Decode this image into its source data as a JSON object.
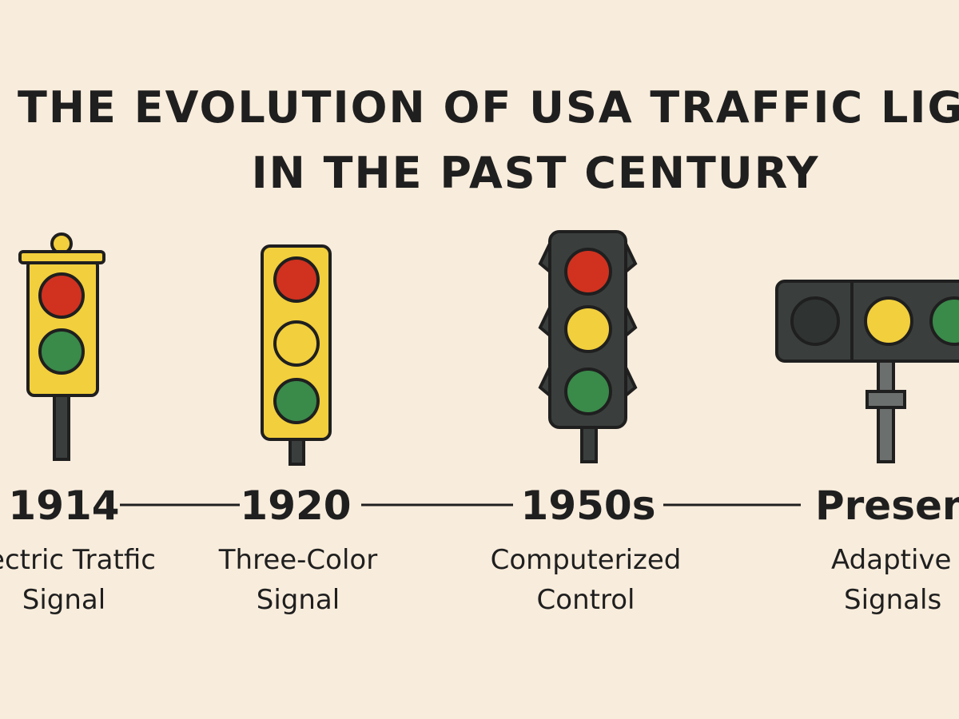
{
  "title": {
    "line1": "THE EVOLUTION OF USA TRAFFIC LIG",
    "line2": "IN THE PAST CENTURY"
  },
  "milestones": [
    {
      "year": "1914",
      "label": [
        "ectric Tratfic",
        "Signal"
      ]
    },
    {
      "year": "1920",
      "label": [
        "Three-Color",
        "Signal"
      ]
    },
    {
      "year": "1950s",
      "label": [
        "Computerized",
        "Control"
      ]
    },
    {
      "year": "Present",
      "label": [
        "Adaptive",
        "Signals"
      ]
    }
  ]
}
